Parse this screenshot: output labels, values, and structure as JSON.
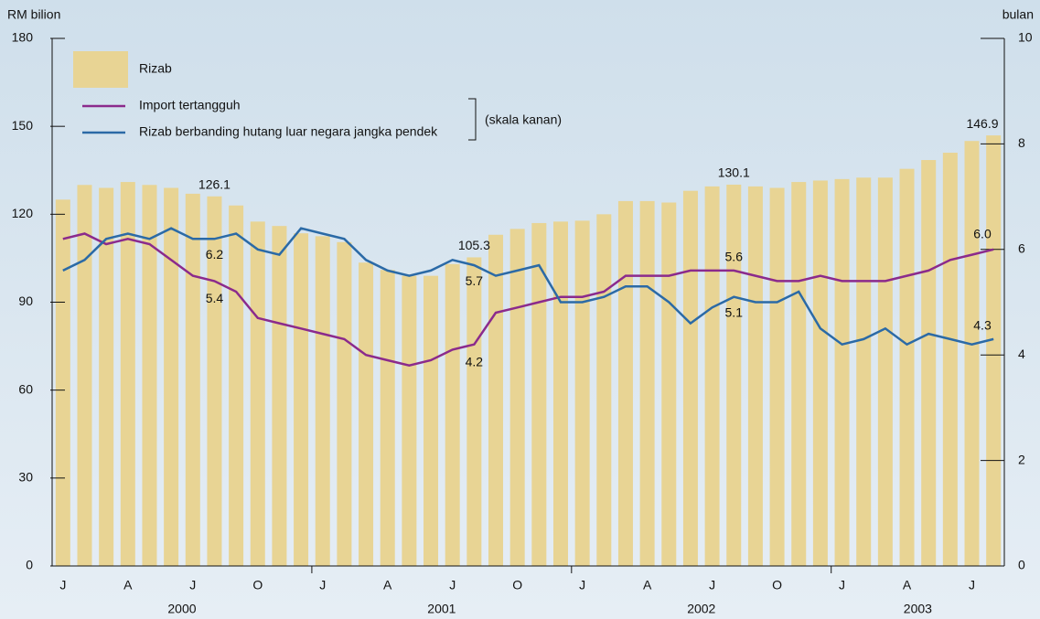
{
  "chart_data": {
    "type": "bar-line",
    "y_label": "RM  bilion",
    "y2_label": "bulan",
    "right_scale_note": "(skala kanan)",
    "categories": [
      "J",
      null,
      null,
      "A",
      null,
      null,
      "J",
      null,
      null,
      "O",
      null,
      null,
      "J",
      null,
      null,
      "A",
      null,
      null,
      "J",
      null,
      null,
      "O",
      null,
      null,
      "J",
      null,
      null,
      "A",
      null,
      null,
      "J",
      null,
      null,
      "O",
      null,
      null,
      "J",
      null,
      null,
      "A",
      null,
      null,
      "J",
      null
    ],
    "groups": [
      "2000",
      "2001",
      "2002",
      "2003"
    ],
    "ylim": [
      0,
      180
    ],
    "yticks": [
      0,
      30,
      60,
      90,
      120,
      150,
      180
    ],
    "y2lim": [
      0,
      10
    ],
    "y2ticks": [
      0,
      2,
      4,
      6,
      8,
      10
    ],
    "series": [
      {
        "name": "Rizab",
        "type": "bar",
        "color": "#e8d494",
        "values": [
          125,
          130,
          129,
          131,
          130,
          129,
          127,
          126.1,
          123,
          117.5,
          116,
          113.5,
          112.5,
          110.5,
          103.5,
          101,
          99,
          99,
          103,
          105.3,
          113,
          115,
          117,
          117.5,
          117.8,
          120,
          124.5,
          124.5,
          124,
          128,
          129.5,
          130.1,
          129.5,
          129,
          131,
          131.5,
          132,
          132.5,
          132.5,
          135.5,
          138.5,
          141,
          145,
          146.9
        ],
        "value_labels": [
          null,
          null,
          null,
          null,
          null,
          null,
          null,
          "126.1",
          null,
          null,
          null,
          null,
          null,
          null,
          null,
          null,
          null,
          null,
          null,
          "105.3",
          null,
          null,
          null,
          null,
          null,
          null,
          null,
          null,
          null,
          null,
          null,
          "130.1",
          null,
          null,
          null,
          null,
          null,
          null,
          null,
          null,
          null,
          null,
          null,
          "146.9"
        ]
      },
      {
        "name": "Import tertangguh",
        "type": "line",
        "axis": "y2",
        "color": "#8b2a8c",
        "values": [
          6.2,
          6.3,
          6.1,
          6.2,
          6.1,
          5.8,
          5.5,
          5.4,
          5.2,
          4.7,
          4.6,
          4.5,
          4.4,
          4.3,
          4.0,
          3.9,
          3.8,
          3.9,
          4.1,
          4.2,
          4.8,
          4.9,
          5.0,
          5.1,
          5.1,
          5.2,
          5.5,
          5.5,
          5.5,
          5.6,
          5.6,
          5.6,
          5.5,
          5.4,
          5.4,
          5.5,
          5.4,
          5.4,
          5.4,
          5.5,
          5.6,
          5.8,
          5.9,
          6.0
        ],
        "value_labels": [
          null,
          null,
          null,
          null,
          null,
          null,
          null,
          "5.4",
          null,
          null,
          null,
          null,
          null,
          null,
          null,
          null,
          null,
          null,
          null,
          "4.2",
          null,
          null,
          null,
          null,
          null,
          null,
          null,
          null,
          null,
          null,
          null,
          "5.6",
          null,
          null,
          null,
          null,
          null,
          null,
          null,
          null,
          null,
          null,
          null,
          "6.0"
        ]
      },
      {
        "name": "Rizab berbanding hutang luar negara jangka pendek",
        "type": "line",
        "axis": "y2",
        "color": "#2b6aa6",
        "values": [
          5.6,
          5.8,
          6.2,
          6.3,
          6.2,
          6.4,
          6.2,
          6.2,
          6.3,
          6.0,
          5.9,
          6.4,
          6.3,
          6.2,
          5.8,
          5.6,
          5.5,
          5.6,
          5.8,
          5.7,
          5.5,
          5.6,
          5.7,
          5.0,
          5.0,
          5.1,
          5.3,
          5.3,
          5.0,
          4.6,
          4.9,
          5.1,
          5.0,
          5.0,
          5.2,
          4.5,
          4.2,
          4.3,
          4.5,
          4.2,
          4.4,
          4.3,
          4.2,
          4.3
        ],
        "value_labels": [
          null,
          null,
          null,
          null,
          null,
          null,
          null,
          "6.2",
          null,
          null,
          null,
          null,
          null,
          null,
          null,
          null,
          null,
          null,
          null,
          "5.7",
          null,
          null,
          null,
          null,
          null,
          null,
          null,
          null,
          null,
          null,
          null,
          "5.1",
          null,
          null,
          null,
          null,
          null,
          null,
          null,
          null,
          null,
          null,
          null,
          "4.3"
        ]
      }
    ]
  }
}
